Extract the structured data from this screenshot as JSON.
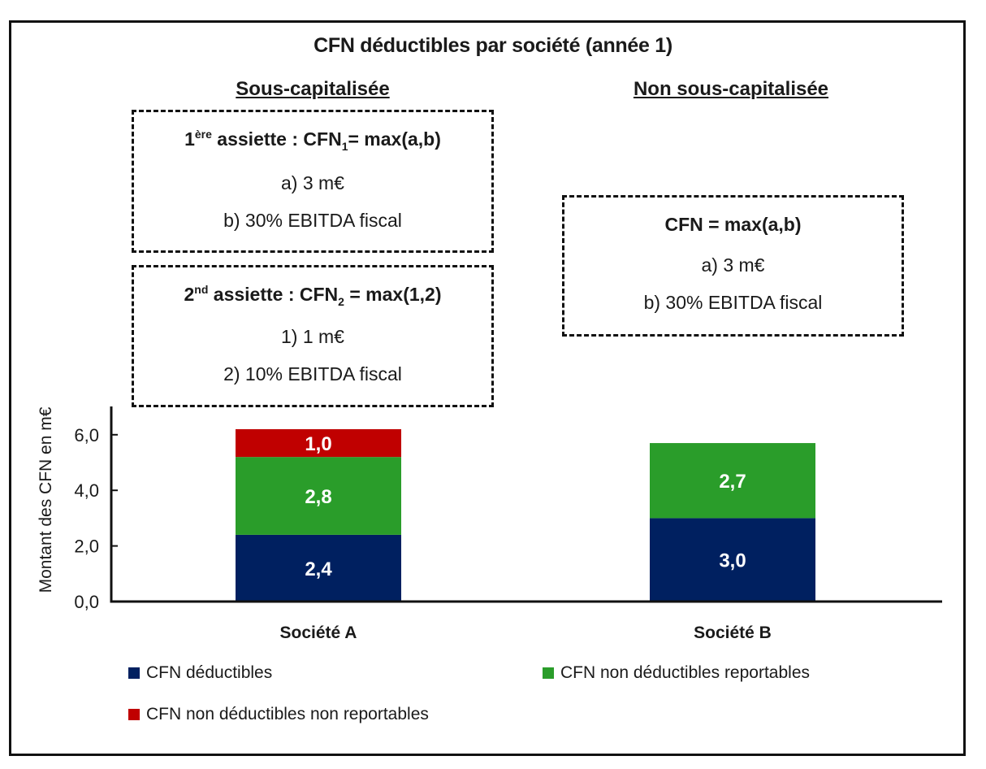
{
  "chart_data": {
    "type": "bar",
    "stacked": true,
    "title": "CFN déductibles par société (année 1)",
    "xlabel": "",
    "ylabel": "Montant des CFN en m€",
    "ylim": [
      0,
      6.5
    ],
    "yticks": [
      0,
      2,
      4,
      6
    ],
    "ytick_labels": [
      "0,0",
      "2,0",
      "4,0",
      "6,0"
    ],
    "grid": false,
    "legend_position": "bottom",
    "categories": [
      "Société A",
      "Société B"
    ],
    "series": [
      {
        "name": "CFN déductibles",
        "color": "#002060",
        "values": [
          2.4,
          3.0
        ],
        "labels": [
          "2,4",
          "3,0"
        ]
      },
      {
        "name": "CFN non déductibles reportables",
        "color": "#2a9d2a",
        "values": [
          2.8,
          2.7
        ],
        "labels": [
          "2,8",
          "2,7"
        ]
      },
      {
        "name": "CFN non déductibles non reportables",
        "color": "#c00000",
        "values": [
          1.0,
          0
        ],
        "labels": [
          "1,0",
          ""
        ]
      }
    ]
  },
  "sections": {
    "left_heading": "Sous-capitalisée",
    "right_heading": "Non sous-capitalisée"
  },
  "boxes": {
    "first_base": {
      "title_num": "1",
      "title_sup": "ère",
      "title_mid": " assiette : CFN",
      "title_sub": "1",
      "title_end": "= max(a,b)",
      "line_a": "a) 3 m€",
      "line_b": "b) 30% EBITDA fiscal"
    },
    "second_base": {
      "title_num": "2",
      "title_sup": "nd",
      "title_mid": " assiette : CFN",
      "title_sub": "2",
      "title_end": " = max(1,2)",
      "line_1": "1) 1 m€",
      "line_2": "2) 10% EBITDA fiscal"
    },
    "non_sous_cap": {
      "title": "CFN = max(a,b)",
      "line_a": "a) 3 m€",
      "line_b": "b) 30% EBITDA fiscal"
    }
  }
}
